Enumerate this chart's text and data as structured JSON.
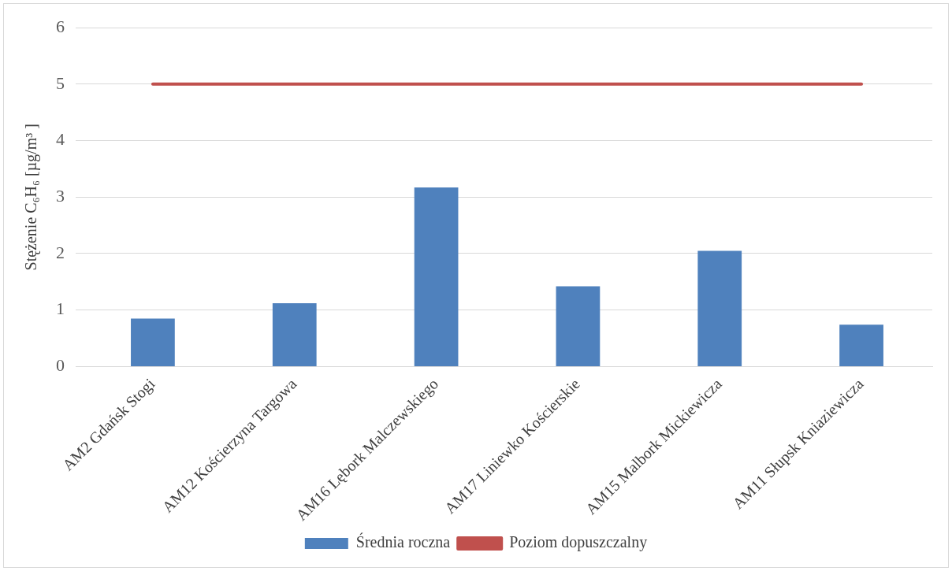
{
  "chart_data": {
    "type": "bar",
    "ylabel": "Stężenie C₆H₆ [µg/m³ ]",
    "categories": [
      "AM2 Gdańsk Stogi",
      "AM12 Kościerzyna Targowa",
      "AM16 Lębork Malczewskiego",
      "AM17 Liniewko Kościerskie",
      "AM15 Malbork Mickiewicza",
      "AM11 Słupsk Kniaziewicza"
    ],
    "series": [
      {
        "name": "Średnia roczna",
        "color": "#4f81bd",
        "values": [
          0.85,
          1.12,
          3.17,
          1.42,
          2.05,
          0.74
        ]
      },
      {
        "name": "Poziom dopuszczalny",
        "type": "line",
        "color": "#c0504d",
        "values": [
          5,
          5,
          5,
          5,
          5,
          5
        ]
      }
    ],
    "ylim": [
      0,
      6
    ],
    "yticks": [
      0,
      1,
      2,
      3,
      4,
      5,
      6
    ],
    "grid": "y",
    "legend": "bottom"
  }
}
